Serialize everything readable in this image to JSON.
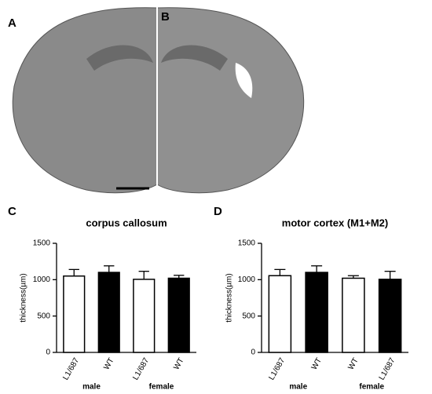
{
  "panel_labels": [
    "A",
    "B",
    "C",
    "D"
  ],
  "chart_data": [
    {
      "type": "bar",
      "title": "corpus callosum",
      "y_label": "thickness(µm)",
      "categories": [
        "L1/687",
        "WT",
        "L1/687",
        "WT"
      ],
      "values": [
        1050,
        1100,
        1005,
        1020
      ],
      "errors": [
        90,
        90,
        110,
        40
      ],
      "colors": [
        "#ffffff",
        "#000000",
        "#ffffff",
        "#000000"
      ],
      "groups": [
        "male",
        "female"
      ],
      "ylim": [
        0,
        1500
      ],
      "yticks": [
        0,
        500,
        1000,
        1500
      ]
    },
    {
      "type": "bar",
      "title": "motor cortex (M1+M2)",
      "y_label": "thickness(µm)",
      "categories": [
        "L1/687",
        "WT",
        "WT",
        "L1/687"
      ],
      "values": [
        1055,
        1100,
        1020,
        1005
      ],
      "errors": [
        85,
        90,
        35,
        110
      ],
      "colors": [
        "#ffffff",
        "#000000",
        "#ffffff",
        "#000000"
      ],
      "groups": [
        "male",
        "female"
      ],
      "ylim": [
        0,
        1500
      ],
      "yticks": [
        0,
        500,
        1000,
        1500
      ]
    }
  ]
}
